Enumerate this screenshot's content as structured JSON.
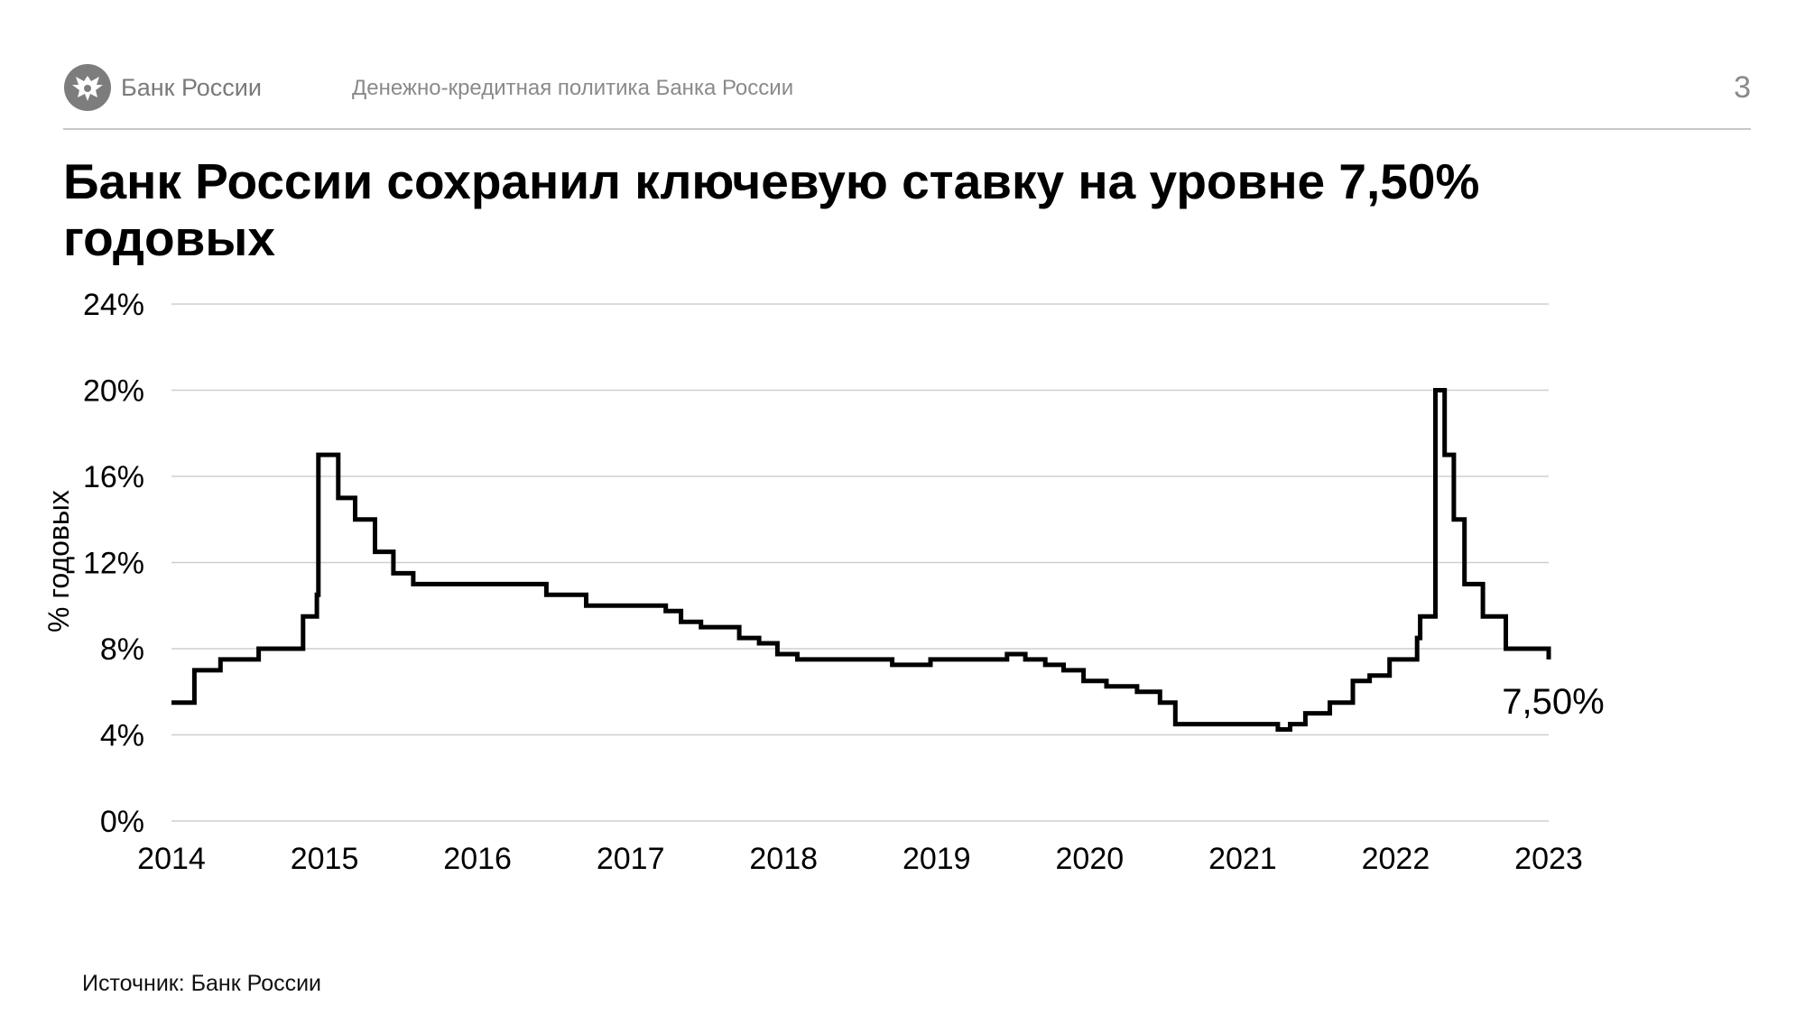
{
  "header": {
    "bank_name": "Банк России",
    "subtitle": "Денежно-кредитная политика Банка России",
    "page_number": "3",
    "logo_icon": "double-headed-eagle-icon"
  },
  "title": "Банк России сохранил ключевую ставку на уровне 7,50% годовых",
  "source": "Источник: Банк России",
  "chart_data": {
    "type": "line",
    "title": "",
    "xlabel": "",
    "ylabel": "% годовых",
    "ylim": [
      0,
      24
    ],
    "xlim": [
      2014,
      2023
    ],
    "y_ticks": [
      "0%",
      "4%",
      "8%",
      "12%",
      "16%",
      "20%",
      "24%"
    ],
    "x_ticks": [
      "2014",
      "2015",
      "2016",
      "2017",
      "2018",
      "2019",
      "2020",
      "2021",
      "2022",
      "2023"
    ],
    "grid": true,
    "line_color": "#000000",
    "end_label": "7,50%",
    "series": [
      {
        "x": [
          2014.0,
          2014.15,
          2014.32,
          2014.57,
          2014.86,
          2014.95,
          2014.96,
          2015.09,
          2015.2,
          2015.33,
          2015.45,
          2015.58,
          2016.45,
          2016.71,
          2017.23,
          2017.33,
          2017.46,
          2017.71,
          2017.84,
          2017.96,
          2018.09,
          2018.71,
          2018.96,
          2019.46,
          2019.58,
          2019.71,
          2019.83,
          2019.96,
          2020.11,
          2020.31,
          2020.46,
          2020.56,
          2021.23,
          2021.31,
          2021.41,
          2021.57,
          2021.72,
          2021.83,
          2021.96,
          2022.14,
          2022.16,
          2022.26,
          2022.32,
          2022.38,
          2022.45,
          2022.57,
          2022.72,
          2023.0
        ],
        "y": [
          5.5,
          7.0,
          7.5,
          8.0,
          9.5,
          10.5,
          17.0,
          15.0,
          14.0,
          12.5,
          11.5,
          11.0,
          10.5,
          10.0,
          9.75,
          9.25,
          9.0,
          8.5,
          8.25,
          7.75,
          7.5,
          7.25,
          7.5,
          7.75,
          7.5,
          7.25,
          7.0,
          6.5,
          6.25,
          6.0,
          5.5,
          4.5,
          4.25,
          4.5,
          5.0,
          5.5,
          6.5,
          6.75,
          7.5,
          8.5,
          9.5,
          20.0,
          17.0,
          14.0,
          11.0,
          9.5,
          8.0,
          7.5
        ]
      }
    ]
  }
}
